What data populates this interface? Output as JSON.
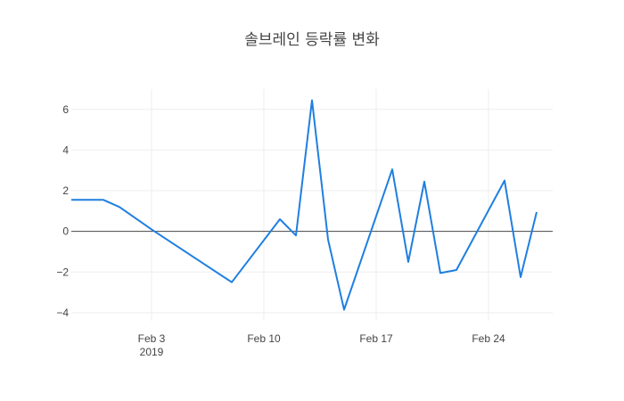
{
  "chart_data": {
    "type": "line",
    "title": "솔브레인 등락률 변화",
    "xlabel": "",
    "ylabel": "",
    "x_ticks": [
      {
        "date": "2019-02-03",
        "label": "Feb 3",
        "sublabel": "2019"
      },
      {
        "date": "2019-02-10",
        "label": "Feb 10",
        "sublabel": ""
      },
      {
        "date": "2019-02-17",
        "label": "Feb 17",
        "sublabel": ""
      },
      {
        "date": "2019-02-24",
        "label": "Feb 24",
        "sublabel": ""
      }
    ],
    "y_ticks": [
      -4,
      -2,
      0,
      2,
      4,
      6
    ],
    "xlim": [
      "2019-01-29",
      "2019-02-28"
    ],
    "ylim": [
      -4.4,
      7.0
    ],
    "grid": true,
    "zero_line": true,
    "series": [
      {
        "color": "#1f7fe0",
        "x": [
          "2019-01-29",
          "2019-01-31",
          "2019-02-01",
          "2019-02-03",
          "2019-02-08",
          "2019-02-11",
          "2019-02-12",
          "2019-02-13",
          "2019-02-14",
          "2019-02-15",
          "2019-02-18",
          "2019-02-19",
          "2019-02-20",
          "2019-02-21",
          "2019-02-22",
          "2019-02-25",
          "2019-02-26",
          "2019-02-27"
        ],
        "values": [
          1.55,
          1.55,
          1.2,
          0.1,
          -2.5,
          0.6,
          -0.2,
          6.45,
          -0.4,
          -3.85,
          3.05,
          -1.5,
          2.45,
          -2.05,
          -1.9,
          2.5,
          -2.25,
          0.95
        ]
      }
    ]
  }
}
